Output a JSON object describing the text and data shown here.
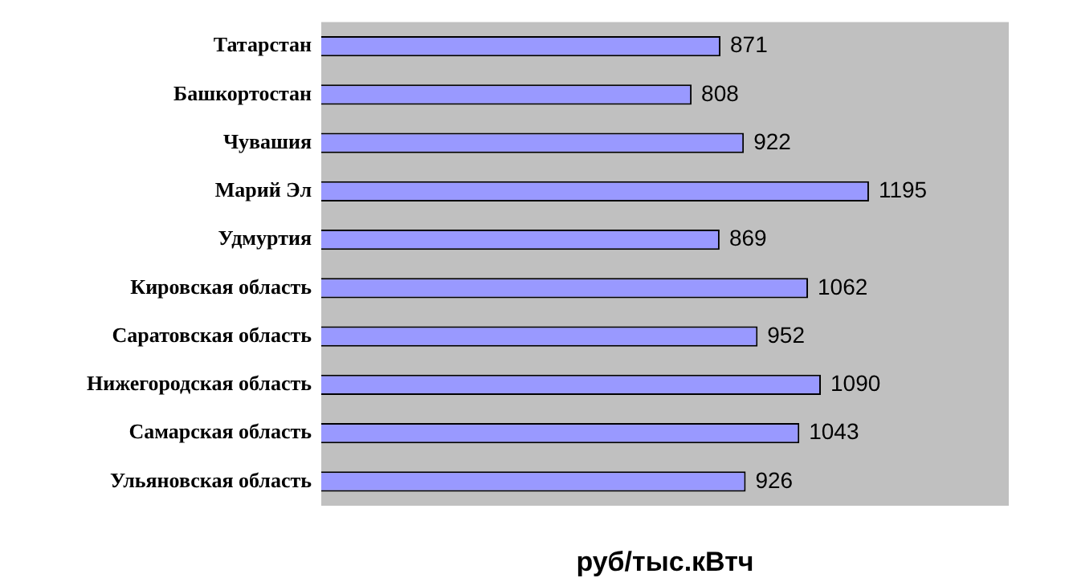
{
  "chart_data": {
    "type": "bar",
    "orientation": "horizontal",
    "xlabel": "руб/тыс.кВтч",
    "categories": [
      "Татарстан",
      "Башкортостан",
      "Чувашия",
      "Марий Эл",
      "Удмуртия",
      "Кировская область",
      "Саратовская область",
      "Нижегородская область",
      "Самарская область",
      "Ульяновская область"
    ],
    "values": [
      871,
      808,
      922,
      1195,
      869,
      1062,
      952,
      1090,
      1043,
      926
    ],
    "color": "#9999ff",
    "xlim": [
      0,
      1500
    ],
    "tick_labels": "y",
    "data_labels": true,
    "grid": false,
    "legend": false
  }
}
